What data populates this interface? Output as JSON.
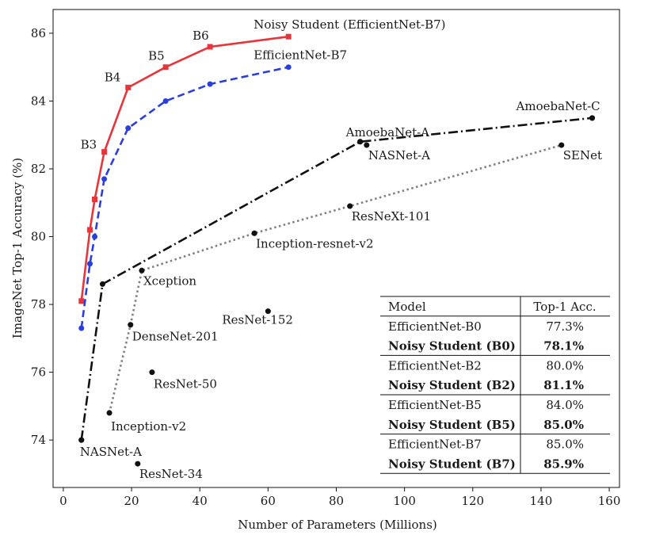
{
  "chart_data": {
    "type": "scatter",
    "title": "",
    "xlabel": "Number of Parameters (Millions)",
    "ylabel": "ImageNet Top-1 Accuracy (%)",
    "xlim": [
      -3,
      163
    ],
    "ylim": [
      72.6,
      86.7
    ],
    "xticks": [
      0,
      20,
      40,
      60,
      80,
      100,
      120,
      140,
      160
    ],
    "yticks": [
      74,
      76,
      78,
      80,
      82,
      84,
      86
    ],
    "grid": false,
    "series": [
      {
        "name": "Noisy Student (EfficientNet-B7)",
        "style": "solid",
        "color": "#e8353b",
        "marker": "square",
        "x": [
          5.3,
          7.8,
          9.2,
          12,
          19,
          30,
          43,
          66
        ],
        "y": [
          78.1,
          80.2,
          81.1,
          82.5,
          84.4,
          85.0,
          85.6,
          85.9
        ]
      },
      {
        "name": "EfficientNet-B7",
        "style": "dashed",
        "color": "#2a3ee0",
        "marker": "circle",
        "x": [
          5.3,
          7.8,
          9.2,
          12,
          19,
          30,
          43,
          66
        ],
        "y": [
          77.3,
          79.2,
          80.0,
          81.7,
          83.2,
          84.0,
          84.5,
          85.0
        ]
      },
      {
        "name": "",
        "style": "dashdot",
        "color": "#111111",
        "marker": "circle",
        "x": [
          5.3,
          11.5,
          87,
          155
        ],
        "y": [
          74.0,
          78.6,
          82.8,
          83.5
        ]
      },
      {
        "name": "",
        "style": "dotted",
        "color": "#808080",
        "marker": "circle",
        "x": [
          13.5,
          19.7,
          23,
          56,
          84,
          146
        ],
        "y": [
          74.8,
          77.4,
          79.0,
          80.1,
          80.9,
          82.7
        ]
      }
    ],
    "points": [
      {
        "label": "NASNet-A",
        "x": 5.3,
        "y": 74.0
      },
      {
        "label": "ResNet-34",
        "x": 21.8,
        "y": 73.3
      },
      {
        "label": "Inception-v2",
        "x": 13.5,
        "y": 74.8
      },
      {
        "label": "ResNet-50",
        "x": 26,
        "y": 76.0
      },
      {
        "label": "DenseNet-201",
        "x": 19.7,
        "y": 77.4
      },
      {
        "label": "ResNet-152",
        "x": 60,
        "y": 77.8
      },
      {
        "label": "Xception",
        "x": 23,
        "y": 79.0
      },
      {
        "label": "Inception-resnet-v2",
        "x": 56,
        "y": 80.1
      },
      {
        "label": "ResNeXt-101",
        "x": 84,
        "y": 80.9
      },
      {
        "label": "SENet",
        "x": 146,
        "y": 82.7
      },
      {
        "label": "NASNet-A",
        "x": 88.9,
        "y": 82.7
      },
      {
        "label": "AmoebaNet-A",
        "x": 87,
        "y": 82.8
      },
      {
        "label": "AmoebaNet-C",
        "x": 155,
        "y": 83.5
      }
    ],
    "annotations": [
      {
        "text": "Noisy Student (EfficientNet-B7)",
        "x": 66,
        "y": 85.9
      },
      {
        "text": "EfficientNet-B7",
        "x": 66,
        "y": 85.0
      },
      {
        "text": "B6",
        "x": 43,
        "y": 85.6
      },
      {
        "text": "B5",
        "x": 30,
        "y": 85.0
      },
      {
        "text": "B4",
        "x": 19,
        "y": 84.4
      },
      {
        "text": "B3",
        "x": 12,
        "y": 82.5
      }
    ],
    "table": {
      "headers": [
        "Model",
        "Top-1 Acc."
      ],
      "rows": [
        {
          "model": "EfficientNet-B0",
          "acc": "77.3%",
          "bold": false
        },
        {
          "model": "Noisy Student (B0)",
          "acc": "78.1%",
          "bold": true
        },
        {
          "model": "EfficientNet-B2",
          "acc": "80.0%",
          "bold": false
        },
        {
          "model": "Noisy Student (B2)",
          "acc": "81.1%",
          "bold": true
        },
        {
          "model": "EfficientNet-B5",
          "acc": "84.0%",
          "bold": false
        },
        {
          "model": "Noisy Student (B5)",
          "acc": "85.0%",
          "bold": true
        },
        {
          "model": "EfficientNet-B7",
          "acc": "85.0%",
          "bold": false
        },
        {
          "model": "Noisy Student (B7)",
          "acc": "85.9%",
          "bold": true
        }
      ]
    }
  }
}
